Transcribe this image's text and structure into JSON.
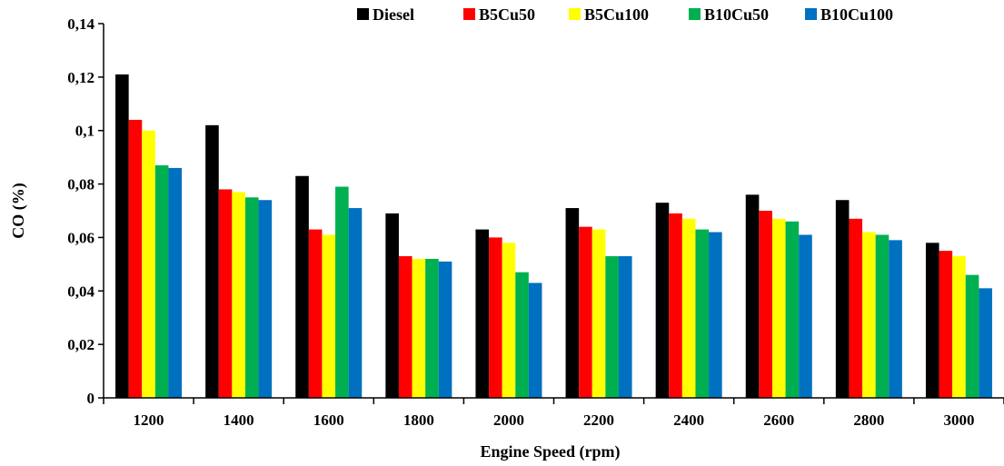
{
  "chart_data": {
    "type": "bar",
    "xlabel": "Engine Speed (rpm)",
    "ylabel": "CO (%)",
    "ylim": [
      0,
      0.14
    ],
    "ytick_step": 0.02,
    "ytick_labels": [
      "0",
      "0,02",
      "0,04",
      "0,06",
      "0,08",
      "0,1",
      "0,12",
      "0,14"
    ],
    "grid": false,
    "legend_position": "top-right",
    "categories": [
      "1200",
      "1400",
      "1600",
      "1800",
      "2000",
      "2200",
      "2400",
      "2600",
      "2800",
      "3000"
    ],
    "series": [
      {
        "name": "Diesel",
        "color": "#000000",
        "values": [
          0.121,
          0.102,
          0.083,
          0.069,
          0.063,
          0.071,
          0.073,
          0.076,
          0.074,
          0.058
        ]
      },
      {
        "name": "B5Cu50",
        "color": "#ff0000",
        "values": [
          0.104,
          0.078,
          0.063,
          0.053,
          0.06,
          0.064,
          0.069,
          0.07,
          0.067,
          0.055
        ]
      },
      {
        "name": "B5Cu100",
        "color": "#ffff00",
        "values": [
          0.1,
          0.077,
          0.061,
          0.052,
          0.058,
          0.063,
          0.067,
          0.067,
          0.062,
          0.053
        ]
      },
      {
        "name": "B10Cu50",
        "color": "#00b050",
        "values": [
          0.087,
          0.075,
          0.079,
          0.052,
          0.047,
          0.053,
          0.063,
          0.066,
          0.061,
          0.046
        ]
      },
      {
        "name": "B10Cu100",
        "color": "#0070c0",
        "values": [
          0.086,
          0.074,
          0.071,
          0.051,
          0.043,
          0.053,
          0.062,
          0.061,
          0.059,
          0.041
        ]
      }
    ]
  }
}
